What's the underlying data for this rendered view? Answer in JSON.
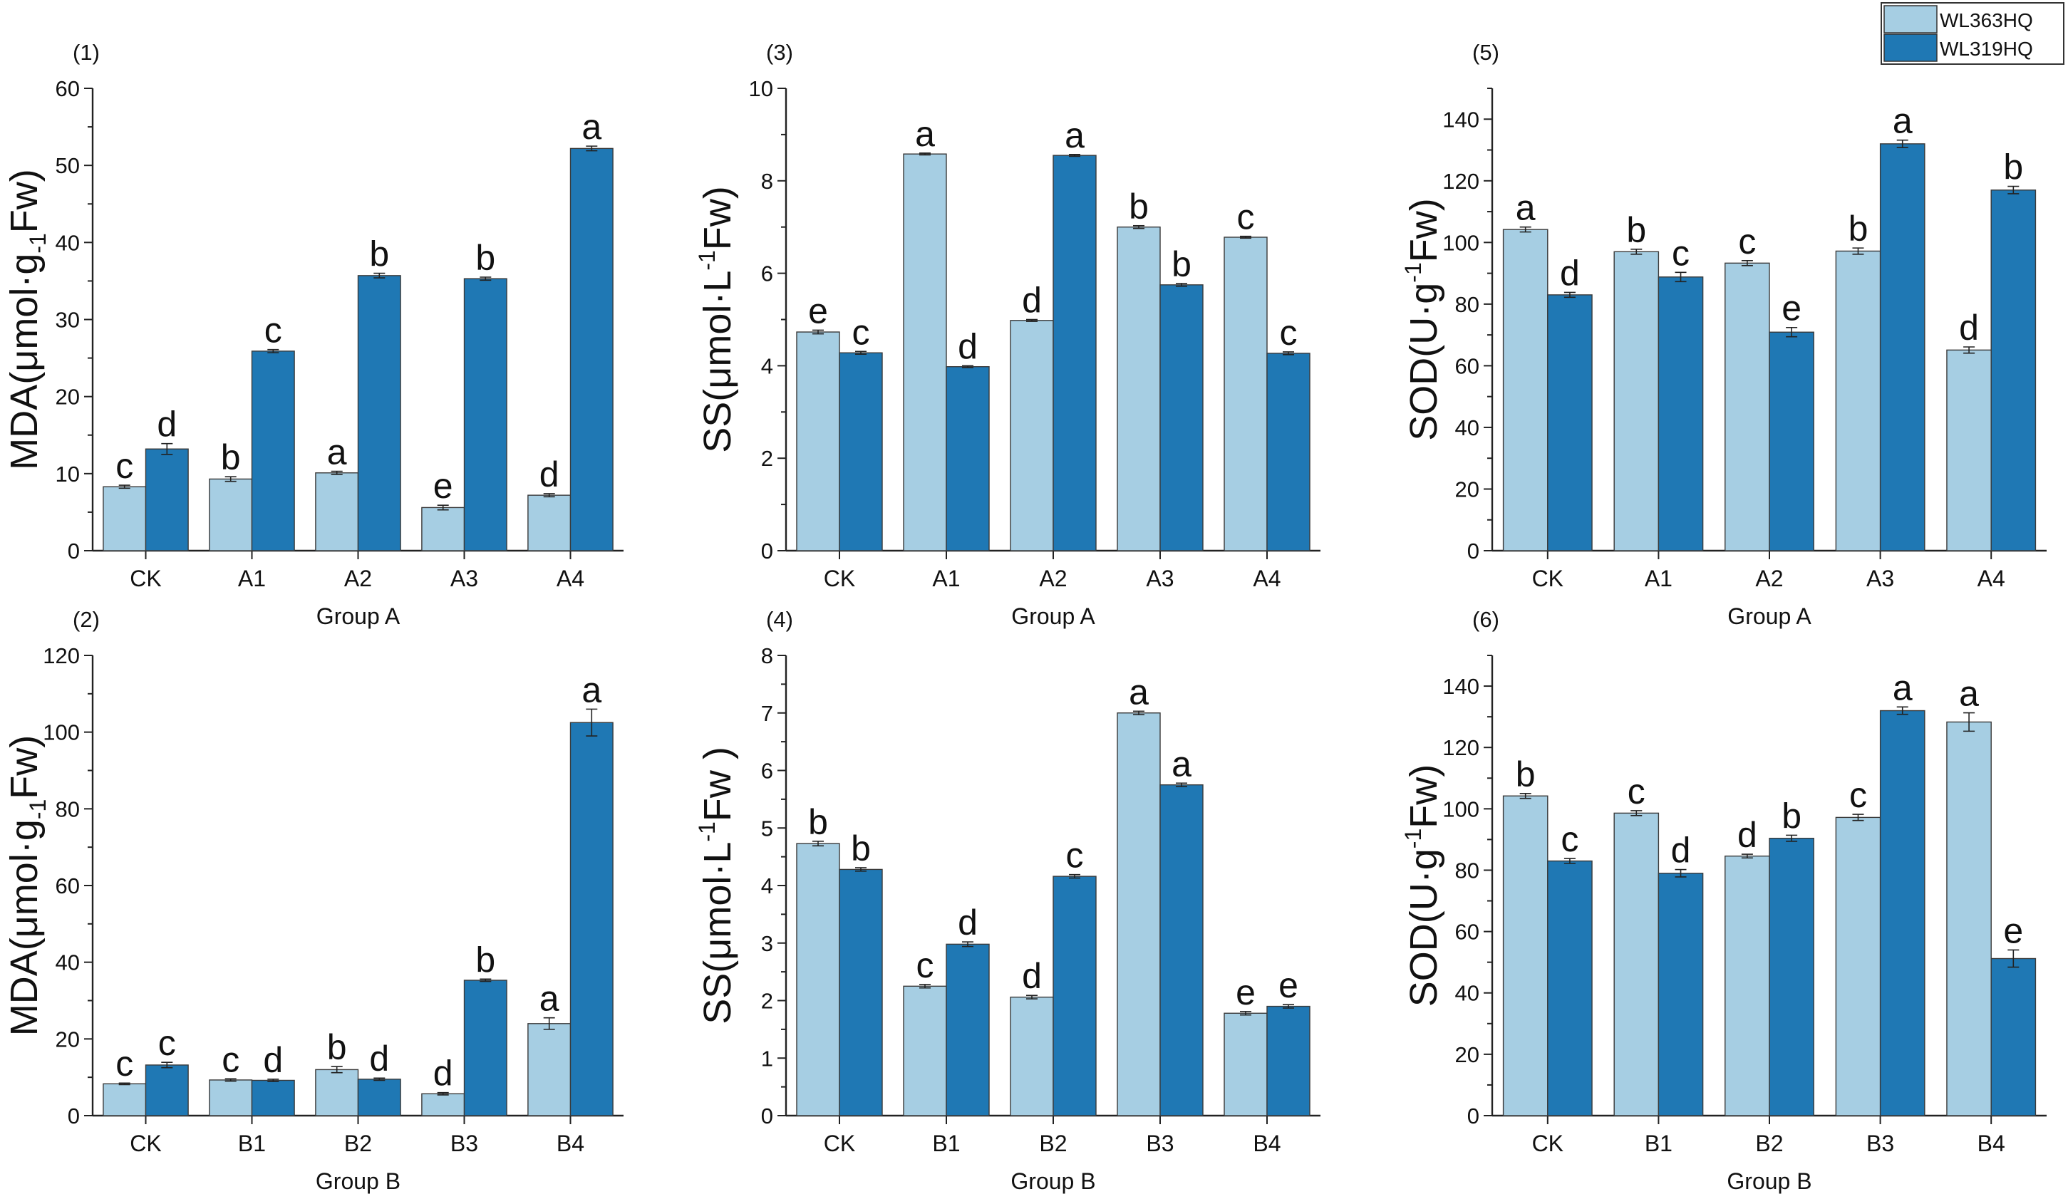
{
  "legend": {
    "entries": [
      {
        "name": "WL363HQ",
        "color": "#a6cee3"
      },
      {
        "name": "WL319HQ",
        "color": "#1f78b4"
      }
    ]
  },
  "chart_data": [
    {
      "type": "bar",
      "panel": "(1)",
      "xlabel": "Group A",
      "ylabel": {
        "main": "MDA(μmol·g",
        "sub": "-1",
        "tail": "Fw)"
      },
      "ylim": [
        0,
        60
      ],
      "yticks": [
        0,
        10,
        20,
        30,
        40,
        50,
        60
      ],
      "categories": [
        "CK",
        "A1",
        "A2",
        "A3",
        "A4"
      ],
      "series": [
        {
          "name": "WL363HQ",
          "values": [
            8.3,
            9.3,
            10.1,
            5.6,
            7.2
          ],
          "errors": [
            0.2,
            0.3,
            0.2,
            0.3,
            0.2
          ],
          "labels": [
            "c",
            "b",
            "a",
            "e",
            "d"
          ]
        },
        {
          "name": "WL319HQ",
          "values": [
            13.2,
            25.9,
            35.7,
            35.3,
            52.2
          ],
          "errors": [
            0.7,
            0.2,
            0.3,
            0.2,
            0.3
          ],
          "labels": [
            "d",
            "c",
            "b",
            "b",
            "a"
          ]
        }
      ]
    },
    {
      "type": "bar",
      "panel": "(3)",
      "xlabel": "Group A",
      "ylabel": {
        "main": "SS(μmol·L",
        "sup": "-1",
        "tail": "Fw)"
      },
      "ylim": [
        0,
        10
      ],
      "yticks": [
        0,
        2,
        4,
        6,
        8,
        10
      ],
      "categories": [
        "CK",
        "A1",
        "A2",
        "A3",
        "A4"
      ],
      "series": [
        {
          "name": "WL363HQ",
          "values": [
            4.73,
            8.58,
            4.98,
            7.0,
            6.78
          ],
          "errors": [
            0.04,
            0.02,
            0.02,
            0.03,
            0.02
          ],
          "labels": [
            "e",
            "a",
            "d",
            "b",
            "c"
          ]
        },
        {
          "name": "WL319HQ",
          "values": [
            4.28,
            3.98,
            8.55,
            5.75,
            4.27
          ],
          "errors": [
            0.03,
            0.02,
            0.02,
            0.03,
            0.03
          ],
          "labels": [
            "c",
            "d",
            "a",
            "b",
            "c"
          ]
        }
      ]
    },
    {
      "type": "bar",
      "panel": "(5)",
      "xlabel": "Group A",
      "ylabel": {
        "main": "SOD(U·g",
        "sup": "-1",
        "tail": "Fw)"
      },
      "ylim": [
        0,
        150
      ],
      "yticks": [
        0,
        20,
        40,
        60,
        80,
        100,
        120,
        140
      ],
      "categories": [
        "CK",
        "A1",
        "A2",
        "A3",
        "A4"
      ],
      "series": [
        {
          "name": "WL363HQ",
          "values": [
            104.2,
            97.0,
            93.3,
            97.2,
            65.1
          ],
          "errors": [
            0.8,
            0.8,
            0.8,
            1.0,
            1.0
          ],
          "labels": [
            "a",
            "b",
            "c",
            "b",
            "d"
          ]
        },
        {
          "name": "WL319HQ",
          "values": [
            83.0,
            88.8,
            70.9,
            132.0,
            117.0
          ],
          "errors": [
            0.8,
            1.5,
            1.5,
            1.2,
            1.2
          ],
          "labels": [
            "d",
            "c",
            "e",
            "a",
            "b"
          ]
        }
      ]
    },
    {
      "type": "bar",
      "panel": "(2)",
      "xlabel": "Group B",
      "ylabel": {
        "main": "MDA(μmol·g",
        "sub": "-1",
        "tail": "Fw)"
      },
      "ylim": [
        0,
        120
      ],
      "yticks": [
        0,
        20,
        40,
        60,
        80,
        100,
        120
      ],
      "categories": [
        "CK",
        "B1",
        "B2",
        "B3",
        "B4"
      ],
      "series": [
        {
          "name": "WL363HQ",
          "values": [
            8.3,
            9.3,
            12.0,
            5.7,
            24.0
          ],
          "errors": [
            0.2,
            0.3,
            0.8,
            0.3,
            1.5
          ],
          "labels": [
            "c",
            "c",
            "b",
            "d",
            "a"
          ]
        },
        {
          "name": "WL319HQ",
          "values": [
            13.2,
            9.2,
            9.5,
            35.3,
            102.5
          ],
          "errors": [
            0.7,
            0.3,
            0.3,
            0.3,
            3.5
          ],
          "labels": [
            "c",
            "d",
            "d",
            "b",
            "a"
          ]
        }
      ]
    },
    {
      "type": "bar",
      "panel": "(4)",
      "xlabel": "Group B",
      "ylabel": {
        "main": "SS(μmol·L",
        "sup": "-1",
        "tail": "Fw )"
      },
      "ylim": [
        0,
        8
      ],
      "yticks": [
        0,
        1,
        2,
        3,
        4,
        5,
        6,
        7,
        8
      ],
      "categories": [
        "CK",
        "B1",
        "B2",
        "B3",
        "B4"
      ],
      "series": [
        {
          "name": "WL363HQ",
          "values": [
            4.73,
            2.25,
            2.06,
            7.0,
            1.78
          ],
          "errors": [
            0.04,
            0.03,
            0.03,
            0.03,
            0.03
          ],
          "labels": [
            "b",
            "c",
            "d",
            "a",
            "e"
          ]
        },
        {
          "name": "WL319HQ",
          "values": [
            4.28,
            2.98,
            4.16,
            5.75,
            1.9
          ],
          "errors": [
            0.03,
            0.04,
            0.03,
            0.03,
            0.03
          ],
          "labels": [
            "b",
            "d",
            "c",
            "a",
            "e"
          ]
        }
      ]
    },
    {
      "type": "bar",
      "panel": "(6)",
      "xlabel": "Group B",
      "ylabel": {
        "main": "SOD(U·g",
        "sup": "-1",
        "tail": "Fw)"
      },
      "ylim": [
        0,
        150
      ],
      "yticks": [
        0,
        20,
        40,
        60,
        80,
        100,
        120,
        140
      ],
      "categories": [
        "CK",
        "B1",
        "B2",
        "B3",
        "B4"
      ],
      "series": [
        {
          "name": "WL363HQ",
          "values": [
            104.2,
            98.6,
            84.6,
            97.2,
            128.3
          ],
          "errors": [
            0.8,
            0.8,
            0.6,
            1.0,
            3.0
          ],
          "labels": [
            "b",
            "c",
            "d",
            "c",
            "a"
          ]
        },
        {
          "name": "WL319HQ",
          "values": [
            83.0,
            79.0,
            90.4,
            132.0,
            51.2
          ],
          "errors": [
            0.8,
            1.2,
            1.0,
            1.2,
            2.8
          ],
          "labels": [
            "c",
            "d",
            "b",
            "a",
            "e"
          ]
        }
      ]
    }
  ]
}
